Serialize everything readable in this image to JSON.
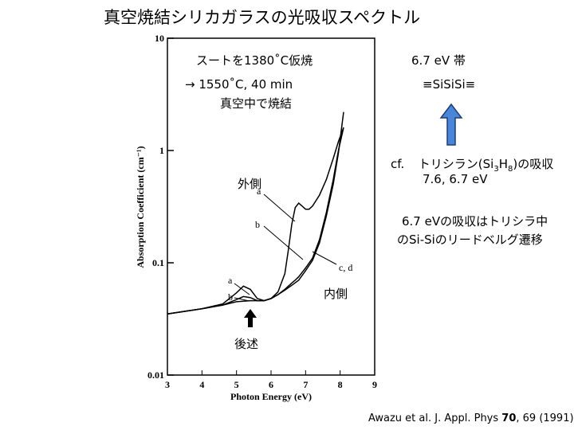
{
  "slide": {
    "title": "真空焼結シリカガラスの光吸収スペクトル",
    "citation": {
      "prefix": "Awazu et al. J. Appl. Phys ",
      "volume": "70",
      "pages": ", 69 (1991)"
    }
  },
  "annotations": {
    "presinter": "スートを1380˚C仮焼",
    "sinter_line1": "→ 1550˚C, 40 min",
    "sinter_line2": "真空中で焼結",
    "band_label": "6.7 eV 帯",
    "structure": "≡SiSiSi≡",
    "cf_prefix": "cf.",
    "cf_text_before": "トリシラン(Si",
    "cf_sub1": "3",
    "cf_mid": "H",
    "cf_sub2": "8",
    "cf_text_after": ")の吸収",
    "cf_values": "7.6, 6.7 eV",
    "explain_line1": "6.7 eVの吸収はトリシラ中",
    "explain_line2": "のSi-Siのリードベルグ遷移",
    "outer_label": "外側",
    "inner_label": "内側",
    "later_label": "後述",
    "arrow_color": "#4a86d8",
    "arrow_outline": "#1f3d70"
  },
  "chart_data": {
    "type": "line",
    "title": "",
    "xlabel": "Photon Energy (eV)",
    "ylabel": "Absorption Coefficient (cm⁻¹)",
    "xlim": [
      3,
      9
    ],
    "ylim": [
      0.01,
      10
    ],
    "yscale": "log",
    "x_ticks": [
      "3",
      "4",
      "5",
      "6",
      "7",
      "8",
      "9"
    ],
    "y_ticks": [
      "0.01",
      "0.1",
      "1",
      "10"
    ],
    "series": [
      {
        "name": "a",
        "x": [
          3.0,
          4.0,
          4.6,
          5.0,
          5.2,
          5.4,
          5.6,
          5.8,
          6.0,
          6.2,
          6.4,
          6.5,
          6.6,
          6.7,
          6.8,
          6.9,
          7.0,
          7.1,
          7.2,
          7.4,
          7.6,
          7.8,
          7.95,
          8.1
        ],
        "y": [
          0.035,
          0.039,
          0.043,
          0.054,
          0.062,
          0.058,
          0.048,
          0.046,
          0.048,
          0.055,
          0.08,
          0.13,
          0.22,
          0.31,
          0.34,
          0.32,
          0.3,
          0.3,
          0.32,
          0.4,
          0.55,
          0.85,
          1.2,
          1.6
        ]
      },
      {
        "name": "b",
        "x": [
          3.0,
          4.0,
          4.6,
          5.0,
          5.2,
          5.4,
          5.6,
          5.8,
          6.0,
          6.2,
          6.4,
          6.5,
          6.6,
          6.7,
          6.8,
          7.0,
          7.2,
          7.4,
          7.6,
          7.8,
          7.95,
          8.1
        ],
        "y": [
          0.035,
          0.039,
          0.042,
          0.047,
          0.05,
          0.049,
          0.046,
          0.046,
          0.048,
          0.052,
          0.058,
          0.062,
          0.066,
          0.07,
          0.075,
          0.09,
          0.11,
          0.16,
          0.28,
          0.55,
          1.0,
          1.6
        ]
      },
      {
        "name": "c, d",
        "x": [
          3.0,
          4.0,
          4.6,
          5.0,
          5.4,
          5.8,
          6.0,
          6.2,
          6.4,
          6.6,
          6.8,
          7.0,
          7.2,
          7.4,
          7.6,
          7.8,
          7.95,
          8.1
        ],
        "y": [
          0.035,
          0.039,
          0.042,
          0.045,
          0.046,
          0.046,
          0.048,
          0.052,
          0.057,
          0.063,
          0.07,
          0.085,
          0.105,
          0.15,
          0.26,
          0.5,
          0.95,
          2.2
        ]
      }
    ]
  }
}
